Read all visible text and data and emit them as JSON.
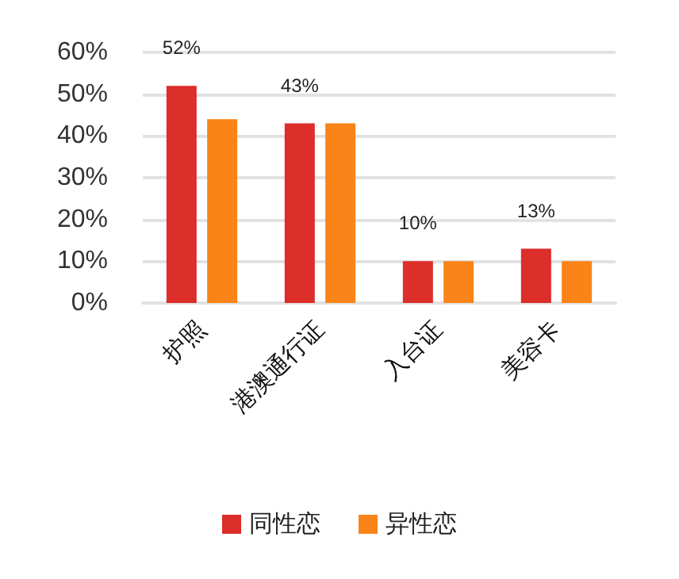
{
  "chart_data": {
    "type": "bar",
    "categories": [
      "护照",
      "港澳通行证",
      "入台证",
      "美容卡"
    ],
    "series": [
      {
        "name": "同性恋",
        "color": "#dc2e2a",
        "values": [
          52,
          43,
          10,
          13
        ],
        "value_labels": [
          "52%",
          "43%",
          "10%",
          "13%"
        ]
      },
      {
        "name": "异性恋",
        "color": "#fa8418",
        "values": [
          44,
          43,
          10,
          10
        ]
      }
    ],
    "ylim": [
      0,
      60
    ],
    "yticks": [
      {
        "value": 0,
        "label": "0%"
      },
      {
        "value": 10,
        "label": "10%"
      },
      {
        "value": 20,
        "label": "20%"
      },
      {
        "value": 30,
        "label": "30%"
      },
      {
        "value": 40,
        "label": "40%"
      },
      {
        "value": 50,
        "label": "50%"
      },
      {
        "value": 60,
        "label": "60%"
      }
    ],
    "grid": "y",
    "legend": "bottom"
  }
}
